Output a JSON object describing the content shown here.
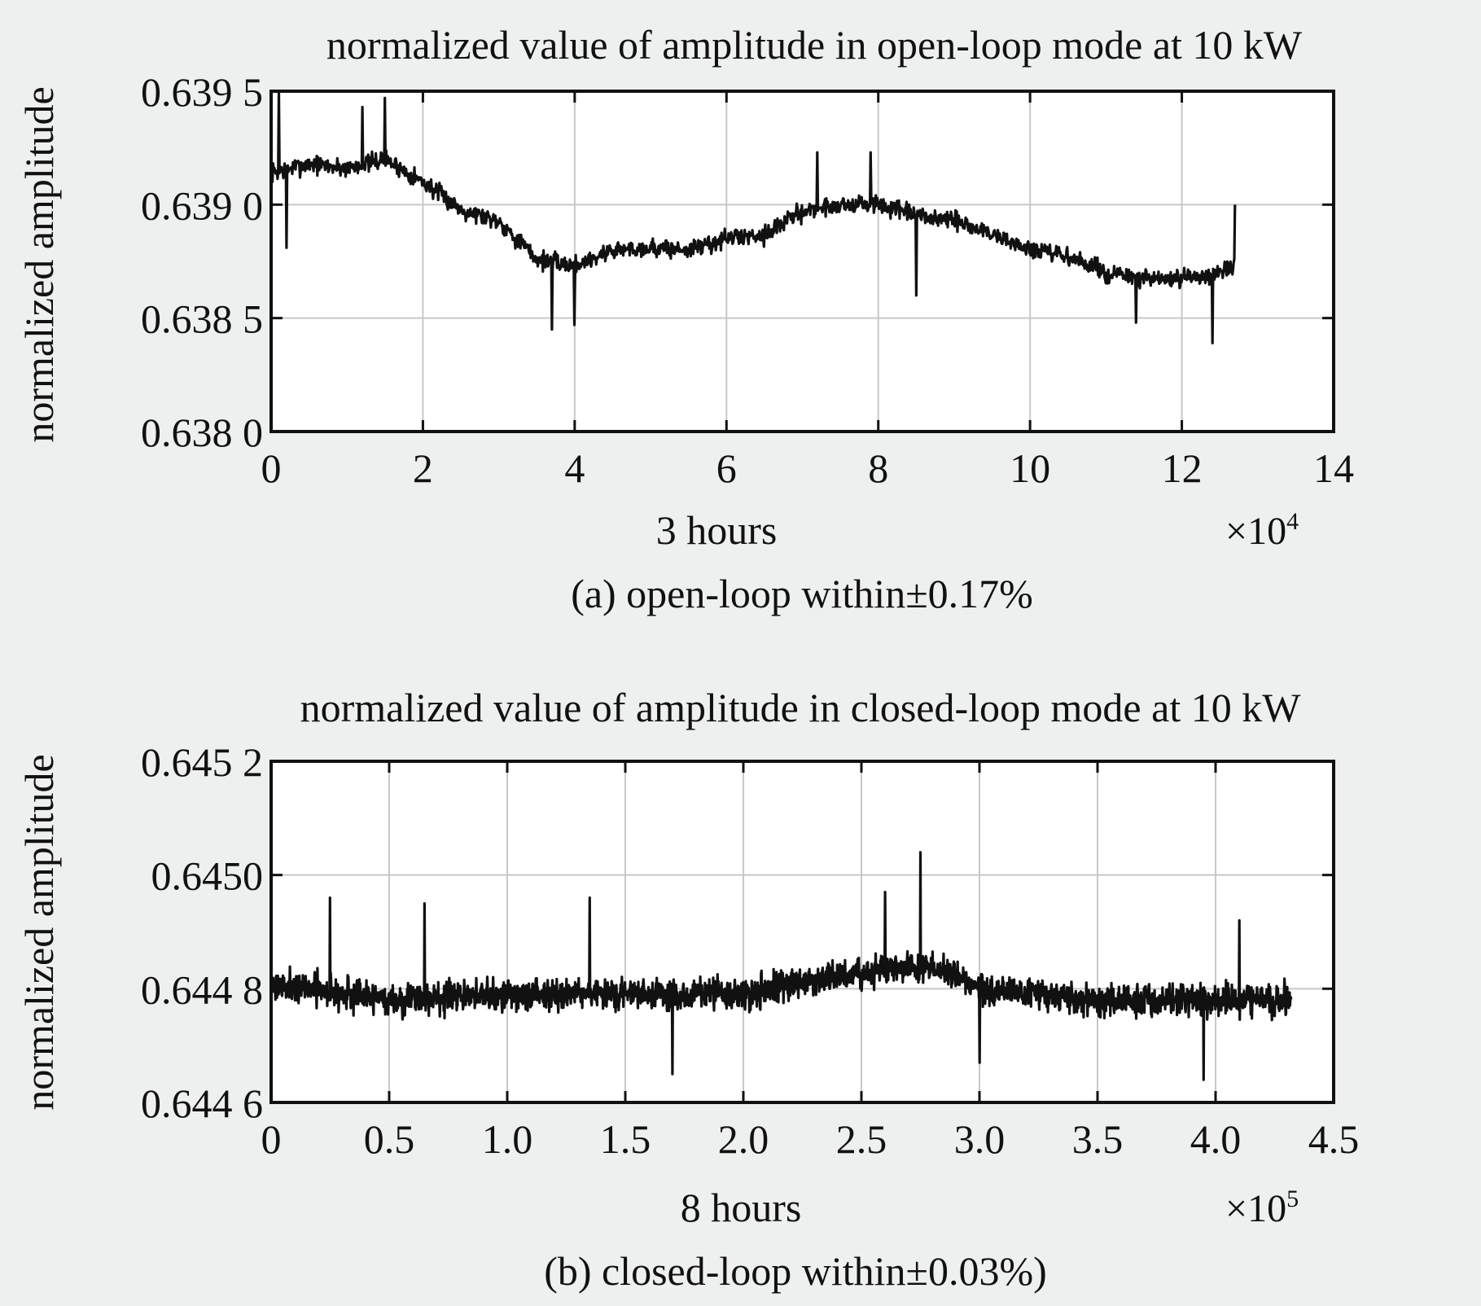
{
  "chart_data": [
    {
      "type": "line",
      "title": "normalized value of amplitude in open-loop mode at 10 kW",
      "xlabel": "3 hours",
      "ylabel": "normalized amplitude",
      "x_multiplier": "×10",
      "x_multiplier_exp": "4",
      "caption": "(a) open-loop within±0.17%",
      "xlim": [
        0,
        14
      ],
      "ylim": [
        0.638,
        0.6395
      ],
      "x_ticks": [
        0,
        2,
        4,
        6,
        8,
        10,
        12,
        14
      ],
      "x_tick_labels": [
        "0",
        "2",
        "4",
        "6",
        "8",
        "10",
        "12",
        "14"
      ],
      "y_ticks": [
        0.638,
        0.6385,
        0.639,
        0.6395
      ],
      "y_tick_labels": [
        "0.638 0",
        "0.638 5",
        "0.639 0",
        "0.639 5"
      ],
      "grid": true,
      "color": "#111111",
      "series": [
        {
          "x_range": [
            0,
            12.7
          ],
          "trend": {
            "x": [
              0,
              0.5,
              1.0,
              1.5,
              2.0,
              2.5,
              3.0,
              3.5,
              4.0,
              4.5,
              5.0,
              5.5,
              6.0,
              6.5,
              7.0,
              7.5,
              8.0,
              8.5,
              9.0,
              9.5,
              10.0,
              10.5,
              11.0,
              11.5,
              12.0,
              12.7
            ],
            "y": [
              0.63914,
              0.63918,
              0.63916,
              0.6392,
              0.6391,
              0.63898,
              0.63893,
              0.63876,
              0.63873,
              0.6388,
              0.63881,
              0.6388,
              0.63885,
              0.63887,
              0.63897,
              0.639,
              0.639,
              0.63895,
              0.63893,
              0.63887,
              0.6388,
              0.63877,
              0.6387,
              0.63867,
              0.63867,
              0.63872
            ]
          },
          "noise_amplitude": 6e-05,
          "spikes": [
            {
              "x": 0.1,
              "y": 0.63955
            },
            {
              "x": 0.2,
              "y": 0.63881
            },
            {
              "x": 1.5,
              "y": 0.63947
            },
            {
              "x": 1.2,
              "y": 0.63943
            },
            {
              "x": 3.7,
              "y": 0.63845
            },
            {
              "x": 4.0,
              "y": 0.63847
            },
            {
              "x": 7.2,
              "y": 0.63923
            },
            {
              "x": 7.9,
              "y": 0.63923
            },
            {
              "x": 8.5,
              "y": 0.6386
            },
            {
              "x": 11.4,
              "y": 0.63848
            },
            {
              "x": 12.4,
              "y": 0.63839
            },
            {
              "x": 12.7,
              "y": 0.639
            }
          ]
        }
      ]
    },
    {
      "type": "line",
      "title": "normalized value of amplitude in closed-loop mode at 10 kW",
      "xlabel": "8 hours",
      "ylabel": "normalized amplitude",
      "x_multiplier": "×10",
      "x_multiplier_exp": "5",
      "caption": "(b) closed-loop within±0.03%)",
      "xlim": [
        0,
        4.5
      ],
      "ylim": [
        0.6446,
        0.6452
      ],
      "x_ticks": [
        0,
        0.5,
        1.0,
        1.5,
        2.0,
        2.5,
        3.0,
        3.5,
        4.0,
        4.5
      ],
      "x_tick_labels": [
        "0",
        "0.5",
        "1.0",
        "1.5",
        "2.0",
        "2.5",
        "3.0",
        "3.5",
        "4.0",
        "4.5"
      ],
      "y_ticks": [
        0.6446,
        0.6448,
        0.645,
        0.6452
      ],
      "y_tick_labels": [
        "0.644 6",
        "0.644 8",
        "0.6450",
        "0.645 2"
      ],
      "grid": true,
      "color": "#111111",
      "series": [
        {
          "x_range": [
            0,
            4.32
          ],
          "trend": {
            "x": [
              0,
              0.5,
              1.0,
              1.5,
              2.0,
              2.5,
              2.8,
              3.0,
              3.5,
              4.0,
              4.32
            ],
            "y": [
              0.64481,
              0.64478,
              0.64479,
              0.64479,
              0.64479,
              0.64483,
              0.64484,
              0.6448,
              0.64478,
              0.64478,
              0.64478
            ]
          },
          "noise_amplitude": 4e-05,
          "spikes": [
            {
              "x": 0.25,
              "y": 0.64496
            },
            {
              "x": 0.65,
              "y": 0.64495
            },
            {
              "x": 1.35,
              "y": 0.64496
            },
            {
              "x": 2.75,
              "y": 0.64504
            },
            {
              "x": 2.6,
              "y": 0.64497
            },
            {
              "x": 1.7,
              "y": 0.64465
            },
            {
              "x": 3.0,
              "y": 0.64467
            },
            {
              "x": 3.95,
              "y": 0.64464
            },
            {
              "x": 4.1,
              "y": 0.64492
            }
          ]
        }
      ]
    }
  ]
}
